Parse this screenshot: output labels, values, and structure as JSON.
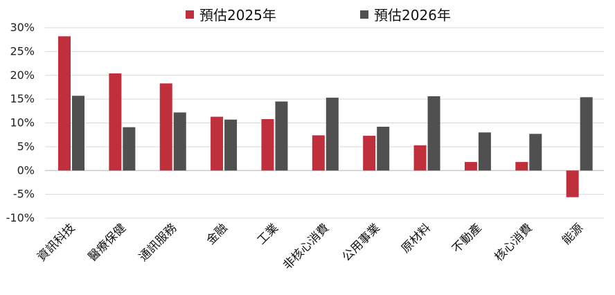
{
  "chart_data": {
    "type": "bar",
    "categories": [
      "資訊科技",
      "醫療保健",
      "通訊服務",
      "金融",
      "工業",
      "非核心消費",
      "公用事業",
      "原材料",
      "不動產",
      "核心消費",
      "能源"
    ],
    "series": [
      {
        "name": "預估2025年",
        "color": "#C0303C",
        "values": [
          28.2,
          20.4,
          18.3,
          11.3,
          10.8,
          7.4,
          7.3,
          5.3,
          1.8,
          1.8,
          -5.6
        ]
      },
      {
        "name": "預估2026年",
        "color": "#505050",
        "values": [
          15.7,
          9.1,
          12.2,
          10.7,
          14.5,
          15.3,
          9.2,
          15.6,
          8.0,
          7.7,
          15.4
        ]
      }
    ],
    "ylim": [
      -10,
      30
    ],
    "yticks": [
      "30%",
      "25%",
      "20%",
      "15%",
      "10%",
      "5%",
      "0%",
      "-5%",
      "-10%"
    ],
    "grid": true,
    "legend": "top-center"
  }
}
